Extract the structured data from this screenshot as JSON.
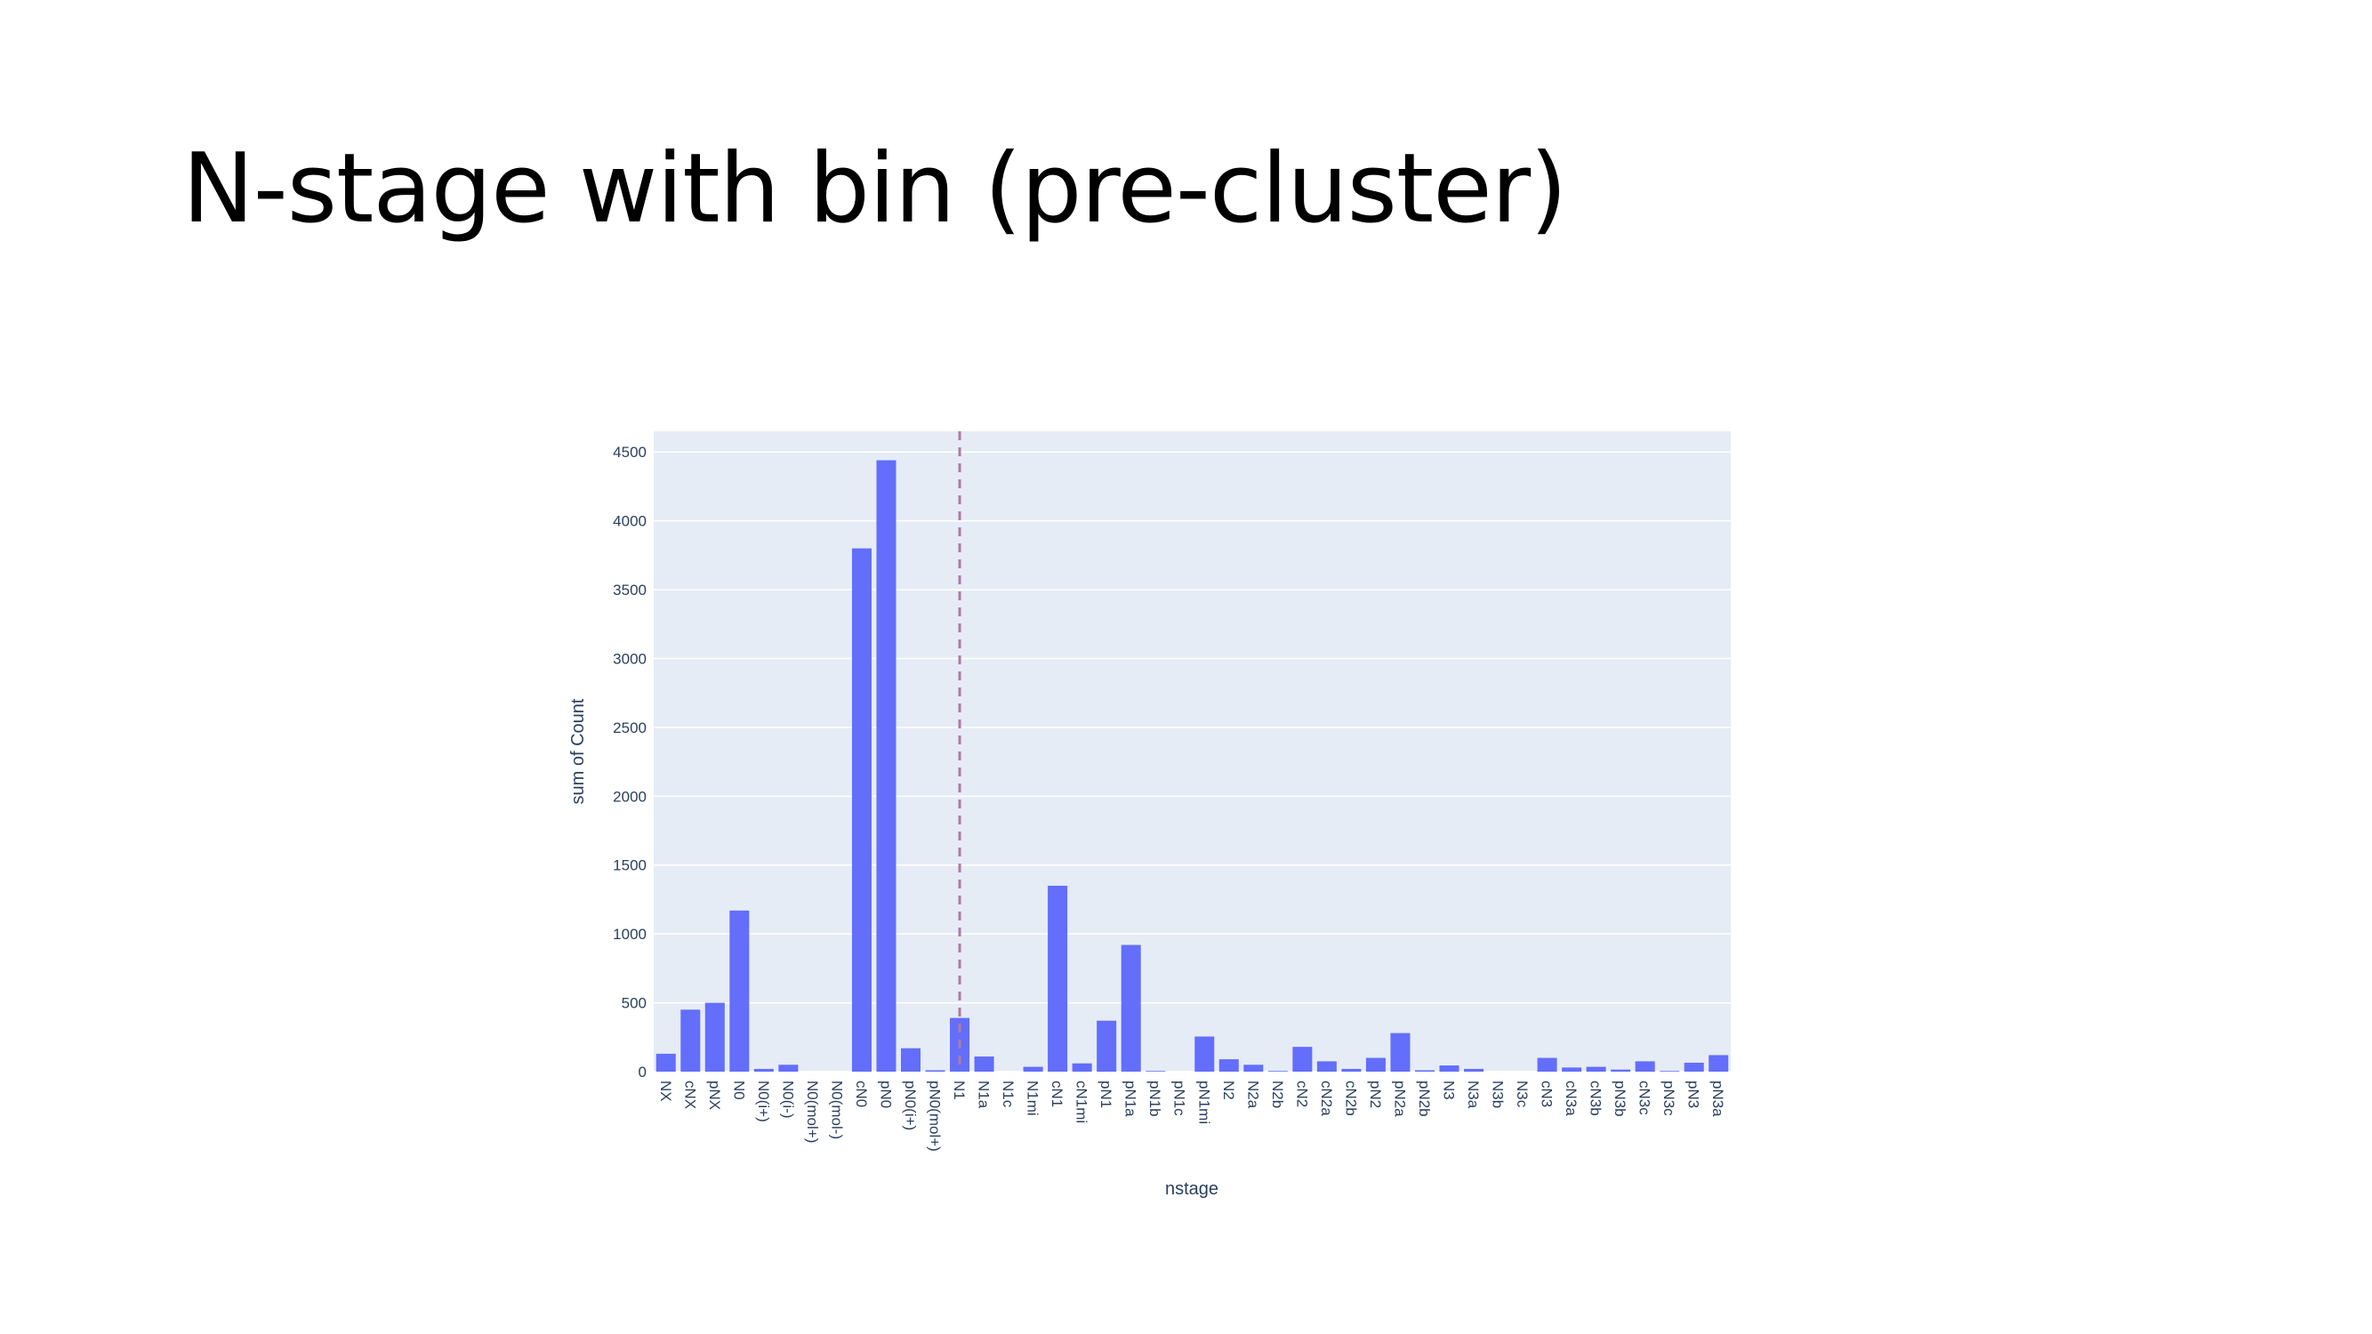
{
  "slide": {
    "title": "N-stage with bin (pre-cluster)"
  },
  "colors": {
    "bar": "#636efa",
    "plot_bg": "#e5ecf6",
    "grid": "#ffffff",
    "text": "#2a3f5f",
    "cutoff_line": "#b07aa1"
  },
  "chart_data": {
    "type": "bar",
    "title": "",
    "xlabel": "nstage",
    "ylabel": "sum of Count",
    "ylim": [
      0,
      4650
    ],
    "yticks": [
      0,
      500,
      1000,
      1500,
      2000,
      2500,
      3000,
      3500,
      4000,
      4500
    ],
    "grid": true,
    "legend": "none",
    "vertical_dashed_line_at": "N1",
    "categories": [
      "NX",
      "cNX",
      "pNX",
      "N0",
      "N0(i+)",
      "N0(i-)",
      "N0(mol+)",
      "N0(mol-)",
      "cN0",
      "pN0",
      "pN0(i+)",
      "pN0(mol+)",
      "N1",
      "N1a",
      "N1c",
      "N1mi",
      "cN1",
      "cN1mi",
      "pN1",
      "pN1a",
      "pN1b",
      "pN1c",
      "pN1mi",
      "N2",
      "N2a",
      "N2b",
      "cN2",
      "cN2a",
      "cN2b",
      "pN2",
      "pN2a",
      "pN2b",
      "N3",
      "N3a",
      "N3b",
      "N3c",
      "cN3",
      "cN3a",
      "cN3b",
      "pN3b",
      "cN3c",
      "pN3c",
      "pN3",
      "pN3a"
    ],
    "values": [
      130,
      450,
      500,
      1170,
      20,
      50,
      0,
      0,
      3800,
      4440,
      170,
      10,
      390,
      110,
      0,
      35,
      1350,
      60,
      370,
      920,
      5,
      0,
      255,
      90,
      50,
      5,
      180,
      75,
      20,
      100,
      280,
      10,
      45,
      20,
      0,
      0,
      100,
      30,
      35,
      15,
      75,
      5,
      65,
      120
    ]
  }
}
